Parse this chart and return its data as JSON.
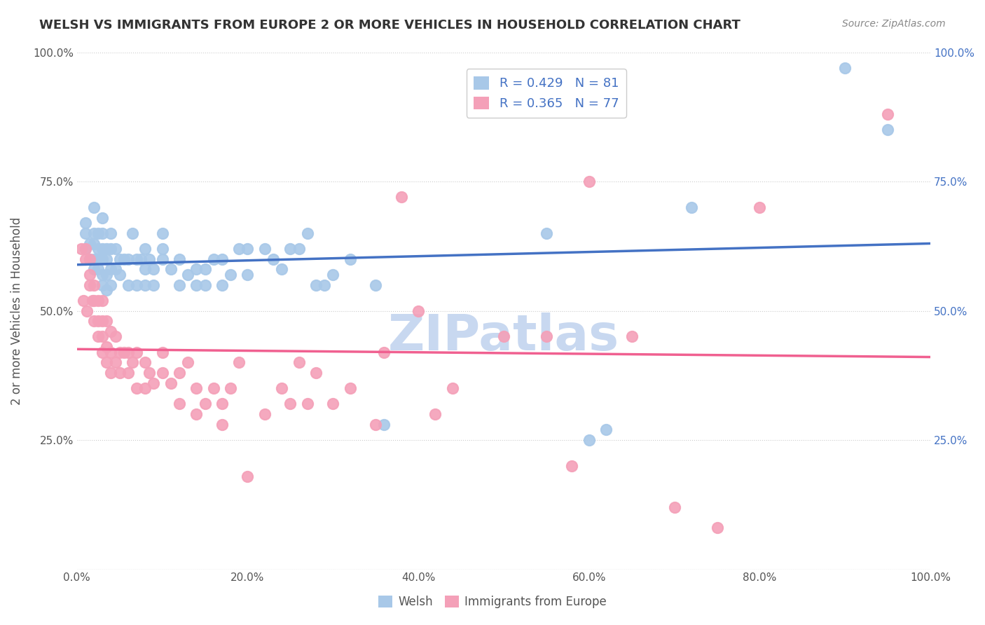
{
  "title": "WELSH VS IMMIGRANTS FROM EUROPE 2 OR MORE VEHICLES IN HOUSEHOLD CORRELATION CHART",
  "source": "Source: ZipAtlas.com",
  "ylabel": "2 or more Vehicles in Household",
  "xlim": [
    0,
    1.0
  ],
  "ylim": [
    0,
    1.0
  ],
  "xtick_labels": [
    "0.0%",
    "20.0%",
    "40.0%",
    "60.0%",
    "80.0%",
    "100.0%"
  ],
  "watermark": "ZIPatlas",
  "watermark_color": "#c8d8f0",
  "blue_scatter_color": "#a8c8e8",
  "pink_scatter_color": "#f4a0b8",
  "blue_line_color": "#4472c4",
  "pink_line_color": "#f06090",
  "right_tick_color": "#4472c4",
  "blue_R": 0.429,
  "blue_N": 81,
  "pink_R": 0.365,
  "pink_N": 77,
  "blue_points_x": [
    0.01,
    0.01,
    0.01,
    0.015,
    0.015,
    0.02,
    0.02,
    0.02,
    0.02,
    0.02,
    0.025,
    0.025,
    0.025,
    0.025,
    0.03,
    0.03,
    0.03,
    0.03,
    0.03,
    0.03,
    0.035,
    0.035,
    0.035,
    0.035,
    0.04,
    0.04,
    0.04,
    0.04,
    0.045,
    0.045,
    0.05,
    0.05,
    0.055,
    0.06,
    0.06,
    0.065,
    0.07,
    0.07,
    0.075,
    0.08,
    0.08,
    0.08,
    0.085,
    0.09,
    0.09,
    0.1,
    0.1,
    0.1,
    0.11,
    0.12,
    0.12,
    0.13,
    0.14,
    0.14,
    0.15,
    0.15,
    0.16,
    0.17,
    0.17,
    0.18,
    0.19,
    0.2,
    0.2,
    0.22,
    0.23,
    0.24,
    0.25,
    0.26,
    0.27,
    0.28,
    0.29,
    0.3,
    0.32,
    0.35,
    0.36,
    0.55,
    0.6,
    0.62,
    0.72,
    0.9,
    0.95
  ],
  "blue_points_y": [
    0.62,
    0.65,
    0.67,
    0.6,
    0.63,
    0.58,
    0.6,
    0.63,
    0.65,
    0.7,
    0.58,
    0.6,
    0.62,
    0.65,
    0.55,
    0.57,
    0.6,
    0.62,
    0.65,
    0.68,
    0.54,
    0.57,
    0.6,
    0.62,
    0.55,
    0.58,
    0.62,
    0.65,
    0.58,
    0.62,
    0.57,
    0.6,
    0.6,
    0.55,
    0.6,
    0.65,
    0.55,
    0.6,
    0.6,
    0.55,
    0.58,
    0.62,
    0.6,
    0.55,
    0.58,
    0.6,
    0.62,
    0.65,
    0.58,
    0.55,
    0.6,
    0.57,
    0.55,
    0.58,
    0.55,
    0.58,
    0.6,
    0.55,
    0.6,
    0.57,
    0.62,
    0.57,
    0.62,
    0.62,
    0.6,
    0.58,
    0.62,
    0.62,
    0.65,
    0.55,
    0.55,
    0.57,
    0.6,
    0.55,
    0.28,
    0.65,
    0.25,
    0.27,
    0.7,
    0.97,
    0.85
  ],
  "pink_points_x": [
    0.005,
    0.008,
    0.01,
    0.01,
    0.012,
    0.015,
    0.015,
    0.015,
    0.018,
    0.02,
    0.02,
    0.02,
    0.025,
    0.025,
    0.025,
    0.03,
    0.03,
    0.03,
    0.03,
    0.035,
    0.035,
    0.035,
    0.04,
    0.04,
    0.04,
    0.045,
    0.045,
    0.05,
    0.05,
    0.055,
    0.06,
    0.06,
    0.065,
    0.07,
    0.07,
    0.08,
    0.08,
    0.085,
    0.09,
    0.1,
    0.1,
    0.11,
    0.12,
    0.12,
    0.13,
    0.14,
    0.14,
    0.15,
    0.16,
    0.17,
    0.17,
    0.18,
    0.19,
    0.2,
    0.22,
    0.24,
    0.25,
    0.26,
    0.27,
    0.28,
    0.3,
    0.32,
    0.35,
    0.36,
    0.38,
    0.4,
    0.42,
    0.44,
    0.5,
    0.55,
    0.58,
    0.6,
    0.65,
    0.7,
    0.75,
    0.8,
    0.95
  ],
  "pink_points_y": [
    0.62,
    0.52,
    0.6,
    0.62,
    0.5,
    0.55,
    0.57,
    0.6,
    0.52,
    0.48,
    0.52,
    0.55,
    0.45,
    0.48,
    0.52,
    0.42,
    0.45,
    0.48,
    0.52,
    0.4,
    0.43,
    0.48,
    0.38,
    0.42,
    0.46,
    0.4,
    0.45,
    0.38,
    0.42,
    0.42,
    0.38,
    0.42,
    0.4,
    0.35,
    0.42,
    0.35,
    0.4,
    0.38,
    0.36,
    0.38,
    0.42,
    0.36,
    0.32,
    0.38,
    0.4,
    0.3,
    0.35,
    0.32,
    0.35,
    0.28,
    0.32,
    0.35,
    0.4,
    0.18,
    0.3,
    0.35,
    0.32,
    0.4,
    0.32,
    0.38,
    0.32,
    0.35,
    0.28,
    0.42,
    0.72,
    0.5,
    0.3,
    0.35,
    0.45,
    0.45,
    0.2,
    0.75,
    0.45,
    0.12,
    0.08,
    0.7,
    0.88
  ]
}
